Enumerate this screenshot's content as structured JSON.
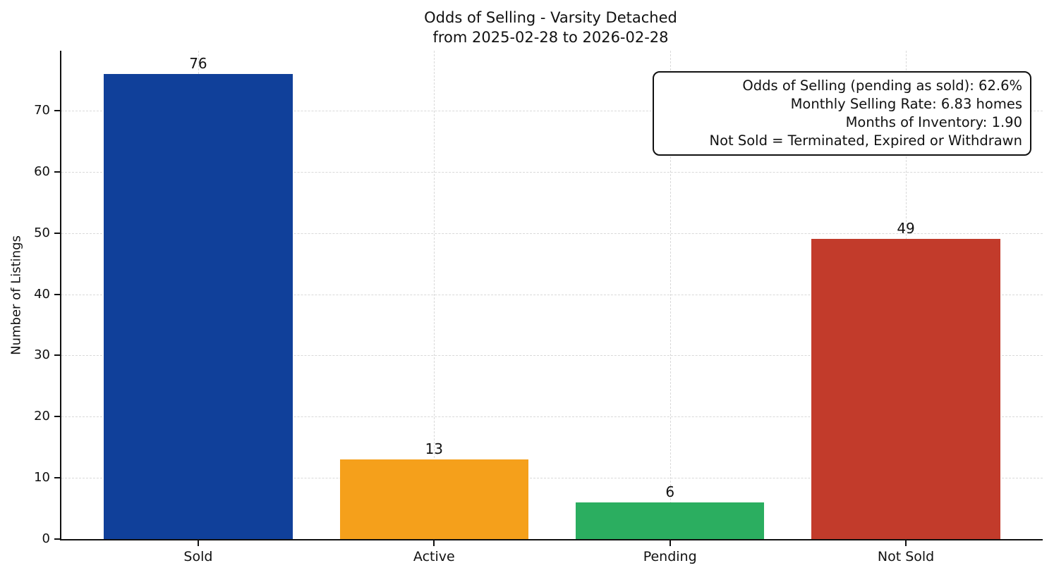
{
  "chart_data": {
    "type": "bar",
    "title": "Odds of Selling - Varsity Detached",
    "subtitle": "from 2025-02-28 to 2026-02-28",
    "categories": [
      "Sold",
      "Active",
      "Pending",
      "Not Sold"
    ],
    "values": [
      76,
      13,
      6,
      49
    ],
    "bar_colors": [
      "#10409a",
      "#f5a01b",
      "#2bae60",
      "#c23b2b"
    ],
    "xlabel": "",
    "ylabel": "Number of Listings",
    "yticks": [
      0,
      10,
      20,
      30,
      40,
      50,
      60,
      70
    ],
    "ylim": [
      0,
      79.8
    ],
    "xlim": [
      -0.58,
      3.58
    ],
    "bar_width": 0.8,
    "grid": "dashed, both axes, light gray",
    "legend_position": "none",
    "annotation": {
      "lines": [
        "Odds of Selling (pending as sold): 62.6%",
        "Monthly Selling Rate: 6.83 homes",
        "Months of Inventory: 1.90",
        "Not Sold = Terminated, Expired or Withdrawn"
      ]
    },
    "colors": {
      "spine": "#111111",
      "gridline": "#d9d9d9",
      "text": "#111111",
      "background": "#ffffff"
    }
  }
}
